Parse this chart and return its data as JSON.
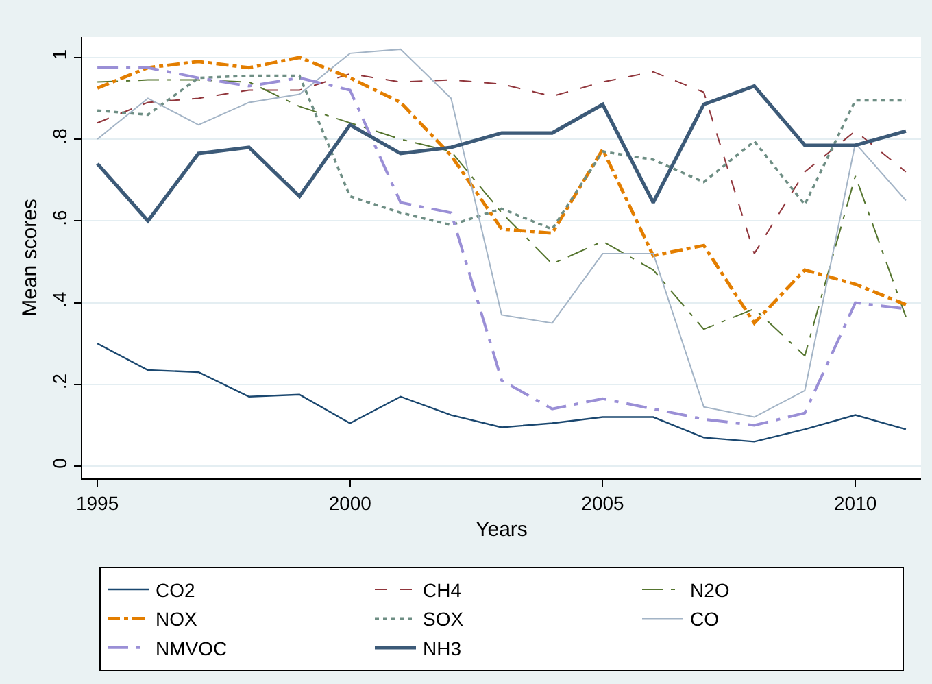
{
  "chart_data": {
    "type": "line",
    "xlabel": "Years",
    "ylabel": "Mean scores",
    "x": [
      1995,
      1996,
      1997,
      1998,
      1999,
      2000,
      2001,
      2002,
      2003,
      2004,
      2005,
      2006,
      2007,
      2008,
      2009,
      2010,
      2011
    ],
    "series": [
      {
        "name": "CO2",
        "color": "#1a476f",
        "line_style": "solid",
        "values": [
          0.3,
          0.235,
          0.23,
          0.17,
          0.175,
          0.105,
          0.17,
          0.125,
          0.095,
          0.105,
          0.12,
          0.12,
          0.07,
          0.06,
          0.09,
          0.125,
          0.09
        ]
      },
      {
        "name": "CH4",
        "color": "#90353b",
        "line_style": "dashed",
        "values": [
          0.84,
          0.89,
          0.9,
          0.92,
          0.92,
          0.96,
          0.94,
          0.945,
          0.935,
          0.905,
          0.94,
          0.965,
          0.915,
          0.52,
          0.72,
          0.82,
          0.72
        ]
      },
      {
        "name": "N2O",
        "color": "#55752f",
        "line_style": "dashed",
        "values": [
          0.94,
          0.945,
          0.945,
          0.94,
          0.88,
          0.84,
          0.8,
          0.77,
          0.62,
          0.495,
          0.55,
          0.48,
          0.335,
          0.385,
          0.27,
          0.71,
          0.365
        ]
      },
      {
        "name": "NOX",
        "color": "#e37e00",
        "line_style": "dashed",
        "values": [
          0.925,
          0.975,
          0.99,
          0.975,
          1.0,
          0.95,
          0.89,
          0.76,
          0.58,
          0.57,
          0.775,
          0.515,
          0.54,
          0.35,
          0.48,
          0.445,
          0.395
        ]
      },
      {
        "name": "SOX",
        "color": "#6e8e84",
        "line_style": "dotted",
        "values": [
          0.87,
          0.86,
          0.95,
          0.955,
          0.955,
          0.66,
          0.62,
          0.59,
          0.63,
          0.58,
          0.77,
          0.75,
          0.695,
          0.795,
          0.64,
          0.895,
          0.895
        ]
      },
      {
        "name": "CO",
        "color": "#a3b4c6",
        "line_style": "solid",
        "values": [
          0.8,
          0.9,
          0.835,
          0.89,
          0.91,
          1.01,
          1.02,
          0.9,
          0.37,
          0.35,
          0.52,
          0.52,
          0.145,
          0.12,
          0.185,
          0.79,
          0.65
        ]
      },
      {
        "name": "NMVOC",
        "color": "#9a8fd6",
        "line_style": "dashed",
        "values": [
          0.975,
          0.975,
          0.95,
          0.93,
          0.95,
          0.92,
          0.645,
          0.62,
          0.21,
          0.14,
          0.165,
          0.14,
          0.115,
          0.1,
          0.13,
          0.4,
          0.385
        ]
      },
      {
        "name": "NH3",
        "color": "#3c5a78",
        "line_style": "solid",
        "values": [
          0.74,
          0.6,
          0.765,
          0.78,
          0.66,
          0.835,
          0.765,
          0.78,
          0.815,
          0.815,
          0.885,
          0.645,
          0.885,
          0.93,
          0.785,
          0.785,
          0.82
        ]
      }
    ],
    "xlim": [
      1994.7,
      2011.3
    ],
    "xticks": [
      1995,
      2000,
      2005,
      2010
    ],
    "ylim": [
      -0.03,
      1.05
    ],
    "yticks": [
      {
        "value": 0,
        "label": "0"
      },
      {
        "value": 0.2,
        "label": ".2"
      },
      {
        "value": 0.4,
        "label": ".4"
      },
      {
        "value": 0.6,
        "label": ".6"
      },
      {
        "value": 0.8,
        "label": ".8"
      },
      {
        "value": 1,
        "label": "1"
      }
    ],
    "grid": "y",
    "legend": "bottom",
    "marker": "none"
  }
}
